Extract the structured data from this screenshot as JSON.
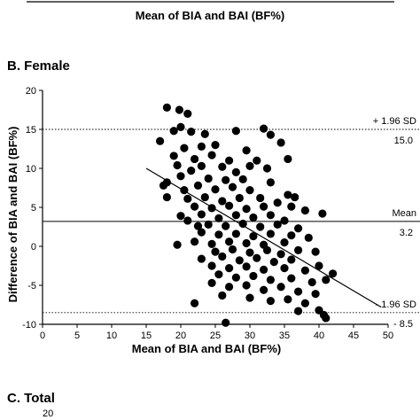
{
  "top_fragment": {
    "xlabel": "Mean of BIA and BAI (BF%)"
  },
  "panels": {
    "b_title": "B. Female",
    "c_title": "C. Total",
    "c_partial_tick": "20"
  },
  "chart_data": {
    "type": "scatter",
    "title": "B. Female",
    "xlabel": "Mean of BIA and BAI (BF%)",
    "ylabel": "Difference of BIA and BAI (BF%)",
    "xlim": [
      0,
      50
    ],
    "ylim": [
      -10,
      20
    ],
    "xticks": [
      0,
      5,
      10,
      15,
      20,
      25,
      30,
      35,
      40,
      45,
      50
    ],
    "yticks": [
      -10,
      -5,
      0,
      5,
      10,
      15,
      20
    ],
    "grid": false,
    "marker_color": "#000000",
    "reference_lines": [
      {
        "label": "+ 1.96 SD",
        "value_label": "15.0",
        "y": 15.0,
        "style": "dotted"
      },
      {
        "label": "Mean",
        "value_label": "3.2",
        "y": 3.2,
        "style": "solid"
      },
      {
        "label": "- 1.96 SD",
        "value_label": "- 8.5",
        "y": -8.5,
        "style": "dotted"
      }
    ],
    "regression_line": {
      "x": [
        15,
        49
      ],
      "y": [
        10,
        -7.8
      ]
    },
    "points": [
      [
        18,
        17.8
      ],
      [
        19.8,
        17.5
      ],
      [
        21,
        17
      ],
      [
        17,
        13.5
      ],
      [
        19,
        14.8
      ],
      [
        20,
        15.3
      ],
      [
        21.5,
        14.7
      ],
      [
        23.5,
        14.4
      ],
      [
        28,
        14.8
      ],
      [
        32,
        15.1
      ],
      [
        33,
        14.3
      ],
      [
        34.5,
        13.3
      ],
      [
        20.5,
        12.6
      ],
      [
        23,
        12.8
      ],
      [
        25,
        13
      ],
      [
        29.5,
        12.3
      ],
      [
        19,
        11.6
      ],
      [
        22,
        11.2
      ],
      [
        24.5,
        11.7
      ],
      [
        27,
        11
      ],
      [
        31,
        11
      ],
      [
        35.5,
        11.2
      ],
      [
        19.5,
        10.4
      ],
      [
        21.5,
        9.7
      ],
      [
        23,
        10.3
      ],
      [
        26,
        10.2
      ],
      [
        28,
        9.5
      ],
      [
        30,
        10.3
      ],
      [
        32.5,
        10
      ],
      [
        20,
        9
      ],
      [
        24,
        8.7
      ],
      [
        26.5,
        8.5
      ],
      [
        29,
        8.6
      ],
      [
        33,
        8.2
      ],
      [
        18,
        8.2
      ],
      [
        17.5,
        7.8
      ],
      [
        20.5,
        7.2
      ],
      [
        22.5,
        7.8
      ],
      [
        25,
        7.3
      ],
      [
        27.5,
        7.6
      ],
      [
        30,
        7.2
      ],
      [
        35.5,
        6.6
      ],
      [
        36.5,
        6.3
      ],
      [
        18,
        6.3
      ],
      [
        21,
        6.1
      ],
      [
        23.5,
        6.3
      ],
      [
        26,
        5.8
      ],
      [
        28.5,
        6.2
      ],
      [
        31.5,
        6.2
      ],
      [
        34,
        5.6
      ],
      [
        22,
        5.1
      ],
      [
        24.5,
        4.9
      ],
      [
        27,
        5.2
      ],
      [
        29.5,
        4.8
      ],
      [
        32,
        5.1
      ],
      [
        36,
        5.1
      ],
      [
        38,
        4.6
      ],
      [
        20,
        3.9
      ],
      [
        23,
        4.1
      ],
      [
        25.5,
        3.6
      ],
      [
        28,
        4
      ],
      [
        30.5,
        3.7
      ],
      [
        33,
        4
      ],
      [
        35,
        3.3
      ],
      [
        40.5,
        4.2
      ],
      [
        21,
        3.3
      ],
      [
        22.5,
        2.6
      ],
      [
        24,
        2.8
      ],
      [
        26.5,
        2.6
      ],
      [
        29,
        2.9
      ],
      [
        31.5,
        2.5
      ],
      [
        34,
        2.8
      ],
      [
        37,
        2.3
      ],
      [
        23,
        1.8
      ],
      [
        25.5,
        1.5
      ],
      [
        28,
        1.6
      ],
      [
        30.5,
        1.3
      ],
      [
        33,
        1.6
      ],
      [
        36,
        1.4
      ],
      [
        38.5,
        1.1
      ],
      [
        22,
        0.6
      ],
      [
        24.5,
        0.3
      ],
      [
        27,
        0.6
      ],
      [
        29.5,
        0.4
      ],
      [
        32,
        0.2
      ],
      [
        35,
        0.5
      ],
      [
        19.5,
        0.2
      ],
      [
        25,
        -0.7
      ],
      [
        27.5,
        -0.4
      ],
      [
        30,
        -0.8
      ],
      [
        32.5,
        -0.5
      ],
      [
        34.5,
        -1
      ],
      [
        37,
        -0.5
      ],
      [
        39.5,
        -0.7
      ],
      [
        23,
        -1.6
      ],
      [
        26,
        -1.3
      ],
      [
        28.5,
        -1.8
      ],
      [
        31,
        -1.5
      ],
      [
        33.5,
        -2
      ],
      [
        36,
        -1.7
      ],
      [
        24.5,
        -2.5
      ],
      [
        27,
        -2.8
      ],
      [
        29.5,
        -2.6
      ],
      [
        32,
        -3
      ],
      [
        35,
        -2.8
      ],
      [
        38,
        -3.1
      ],
      [
        40,
        -2.5
      ],
      [
        42,
        -3.5
      ],
      [
        25.5,
        -3.6
      ],
      [
        28,
        -4
      ],
      [
        30.5,
        -3.8
      ],
      [
        33,
        -4.3
      ],
      [
        36,
        -4.1
      ],
      [
        39,
        -4.6
      ],
      [
        41,
        -4.3
      ],
      [
        24.5,
        -4.7
      ],
      [
        27,
        -5.2
      ],
      [
        29.5,
        -5
      ],
      [
        32,
        -5.6
      ],
      [
        34.5,
        -5.2
      ],
      [
        37,
        -5.8
      ],
      [
        39.5,
        -6.1
      ],
      [
        26,
        -6.3
      ],
      [
        30,
        -6.6
      ],
      [
        33,
        -7
      ],
      [
        35.5,
        -6.8
      ],
      [
        38,
        -7.3
      ],
      [
        22,
        -7.3
      ],
      [
        37,
        -8.3
      ],
      [
        40,
        -8.2
      ],
      [
        41,
        -9.2
      ],
      [
        40.7,
        -8.8
      ],
      [
        26.5,
        -9.8
      ]
    ]
  }
}
